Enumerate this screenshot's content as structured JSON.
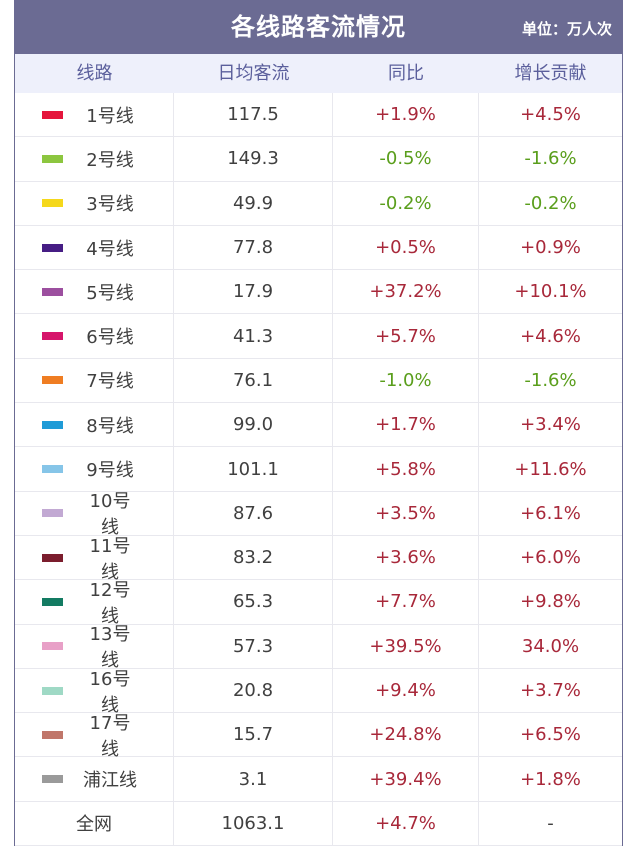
{
  "title": "各线路客流情况",
  "unit": "单位：万人次",
  "headers": [
    "线路",
    "日均客流",
    "同比",
    "增长贡献"
  ],
  "rows": [
    {
      "line": "1号线",
      "color": "#e5153c",
      "daily": "117.5",
      "yoy": "+1.9%",
      "yoy_dir": "pos",
      "contrib": "+4.5%",
      "contrib_dir": "pos"
    },
    {
      "line": "2号线",
      "color": "#8cc63f",
      "daily": "149.3",
      "yoy": "-0.5%",
      "yoy_dir": "neg",
      "contrib": "-1.6%",
      "contrib_dir": "neg"
    },
    {
      "line": "3号线",
      "color": "#f5d81b",
      "daily": "49.9",
      "yoy": "-0.2%",
      "yoy_dir": "neg",
      "contrib": "-0.2%",
      "contrib_dir": "neg"
    },
    {
      "line": "4号线",
      "color": "#461d84",
      "daily": "77.8",
      "yoy": "+0.5%",
      "yoy_dir": "pos",
      "contrib": "+0.9%",
      "contrib_dir": "pos"
    },
    {
      "line": "5号线",
      "color": "#9c4f9f",
      "daily": "17.9",
      "yoy": "+37.2%",
      "yoy_dir": "pos",
      "contrib": "+10.1%",
      "contrib_dir": "pos"
    },
    {
      "line": "6号线",
      "color": "#d6156b",
      "daily": "41.3",
      "yoy": "+5.7%",
      "yoy_dir": "pos",
      "contrib": "+4.6%",
      "contrib_dir": "pos"
    },
    {
      "line": "7号线",
      "color": "#ef7d22",
      "daily": "76.1",
      "yoy": "-1.0%",
      "yoy_dir": "neg",
      "contrib": "-1.6%",
      "contrib_dir": "neg"
    },
    {
      "line": "8号线",
      "color": "#1f9bd7",
      "daily": "99.0",
      "yoy": "+1.7%",
      "yoy_dir": "pos",
      "contrib": "+3.4%",
      "contrib_dir": "pos"
    },
    {
      "line": "9号线",
      "color": "#86c5e8",
      "daily": "101.1",
      "yoy": "+5.8%",
      "yoy_dir": "pos",
      "contrib": "+11.6%",
      "contrib_dir": "pos"
    },
    {
      "line": "10号线",
      "color": "#c2a9d3",
      "daily": "87.6",
      "yoy": "+3.5%",
      "yoy_dir": "pos",
      "contrib": "+6.1%",
      "contrib_dir": "pos"
    },
    {
      "line": "11号线",
      "color": "#7b1d2d",
      "daily": "83.2",
      "yoy": "+3.6%",
      "yoy_dir": "pos",
      "contrib": "+6.0%",
      "contrib_dir": "pos"
    },
    {
      "line": "12号线",
      "color": "#137b62",
      "daily": "65.3",
      "yoy": "+7.7%",
      "yoy_dir": "pos",
      "contrib": "+9.8%",
      "contrib_dir": "pos"
    },
    {
      "line": "13号线",
      "color": "#e8a0c7",
      "daily": "57.3",
      "yoy": "+39.5%",
      "yoy_dir": "pos",
      "contrib": "34.0%",
      "contrib_dir": "pos"
    },
    {
      "line": "16号线",
      "color": "#9fd9c5",
      "daily": "20.8",
      "yoy": "+9.4%",
      "yoy_dir": "pos",
      "contrib": "+3.7%",
      "contrib_dir": "pos"
    },
    {
      "line": "17号线",
      "color": "#c0766a",
      "daily": "15.7",
      "yoy": "+24.8%",
      "yoy_dir": "pos",
      "contrib": "+6.5%",
      "contrib_dir": "pos"
    },
    {
      "line": "浦江线",
      "color": "#9a9a9a",
      "daily": "3.1",
      "yoy": "+39.4%",
      "yoy_dir": "pos",
      "contrib": "+1.8%",
      "contrib_dir": "pos"
    }
  ],
  "total": {
    "line": "全网",
    "daily": "1063.1",
    "yoy": "+4.7%",
    "yoy_dir": "pos",
    "contrib": "-"
  },
  "colors": {
    "header_bar": "#6b6b93",
    "header_row_bg": "#eef0fb",
    "header_text": "#5b5f9c",
    "positive": "#a8283a",
    "negative": "#5a9e1c"
  }
}
